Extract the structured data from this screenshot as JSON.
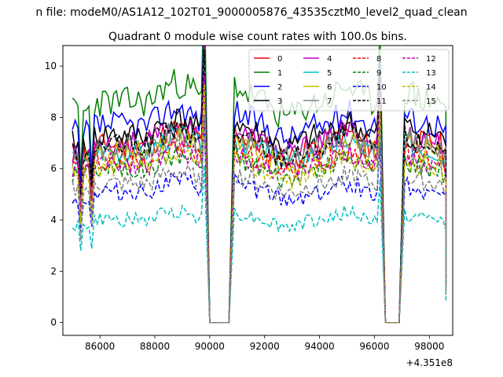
{
  "figure": {
    "suptitle": "n file: modeM0/AS1A12_102T01_9000005876_43535cztM0_level2_quad_clean",
    "title": "Quadrant 0 module wise count rates with 100.0s bins.",
    "offset_label": "+4.351e8"
  },
  "chart_data": {
    "type": "line",
    "title": "Quadrant 0 module wise count rates with 100.0s bins.",
    "xlabel": "",
    "ylabel": "",
    "x_offset": 435100000,
    "xlim": [
      84650,
      98850
    ],
    "ylim": [
      -0.5,
      10.8
    ],
    "xticks": [
      86000,
      88000,
      90000,
      92000,
      94000,
      96000,
      98000
    ],
    "xtick_labels": [
      "86000",
      "88000",
      "90000",
      "92000",
      "94000",
      "96000",
      "98000"
    ],
    "yticks": [
      0,
      2,
      4,
      6,
      8,
      10
    ],
    "ytick_labels": [
      "0",
      "2",
      "4",
      "6",
      "8",
      "10"
    ],
    "grid": false,
    "legend_position": "top-right",
    "legend_columns": 4,
    "segments": [
      {
        "x0": 85000,
        "x1": 89800,
        "kind": "data"
      },
      {
        "x0": 89800,
        "x1": 90000,
        "kind": "fall"
      },
      {
        "x0": 90000,
        "x1": 90700,
        "kind": "zero"
      },
      {
        "x0": 90700,
        "x1": 90900,
        "kind": "rise"
      },
      {
        "x0": 90900,
        "x1": 96200,
        "kind": "data"
      },
      {
        "x0": 96200,
        "x1": 96400,
        "kind": "fall"
      },
      {
        "x0": 96400,
        "x1": 96900,
        "kind": "zero"
      },
      {
        "x0": 96900,
        "x1": 97100,
        "kind": "rise"
      },
      {
        "x0": 97100,
        "x1": 98600,
        "kind": "data"
      }
    ],
    "series": [
      {
        "name": "0",
        "color": "#ff0000",
        "dash": "solid",
        "level": 6.9,
        "seed": 11
      },
      {
        "name": "1",
        "color": "#008000",
        "dash": "solid",
        "level": 8.6,
        "seed": 23
      },
      {
        "name": "2",
        "color": "#0000ff",
        "dash": "solid",
        "level": 7.7,
        "seed": 37
      },
      {
        "name": "3",
        "color": "#000000",
        "dash": "solid",
        "level": 7.3,
        "seed": 41
      },
      {
        "name": "4",
        "color": "#bf00bf",
        "dash": "solid",
        "level": 7.0,
        "seed": 53
      },
      {
        "name": "5",
        "color": "#00bfbf",
        "dash": "solid",
        "level": 6.7,
        "seed": 67
      },
      {
        "name": "6",
        "color": "#bfbf00",
        "dash": "solid",
        "level": 6.6,
        "seed": 71
      },
      {
        "name": "7",
        "color": "#808080",
        "dash": "solid",
        "level": 6.8,
        "seed": 83
      },
      {
        "name": "8",
        "color": "#ff0000",
        "dash": "dashed",
        "level": 6.3,
        "seed": 97
      },
      {
        "name": "9",
        "color": "#008000",
        "dash": "dashed",
        "level": 6.0,
        "seed": 101
      },
      {
        "name": "10",
        "color": "#0000ff",
        "dash": "dashed",
        "level": 5.1,
        "seed": 113
      },
      {
        "name": "11",
        "color": "#000000",
        "dash": "dashed",
        "level": 6.9,
        "seed": 127
      },
      {
        "name": "12",
        "color": "#bf00bf",
        "dash": "dashed",
        "level": 6.2,
        "seed": 131
      },
      {
        "name": "13",
        "color": "#00bfbf",
        "dash": "dashed",
        "level": 4.0,
        "seed": 149
      },
      {
        "name": "14",
        "color": "#bfbf00",
        "dash": "dashed",
        "level": 6.0,
        "seed": 157
      },
      {
        "name": "15",
        "color": "#808080",
        "dash": "dashed",
        "level": 5.4,
        "seed": 163
      }
    ]
  }
}
